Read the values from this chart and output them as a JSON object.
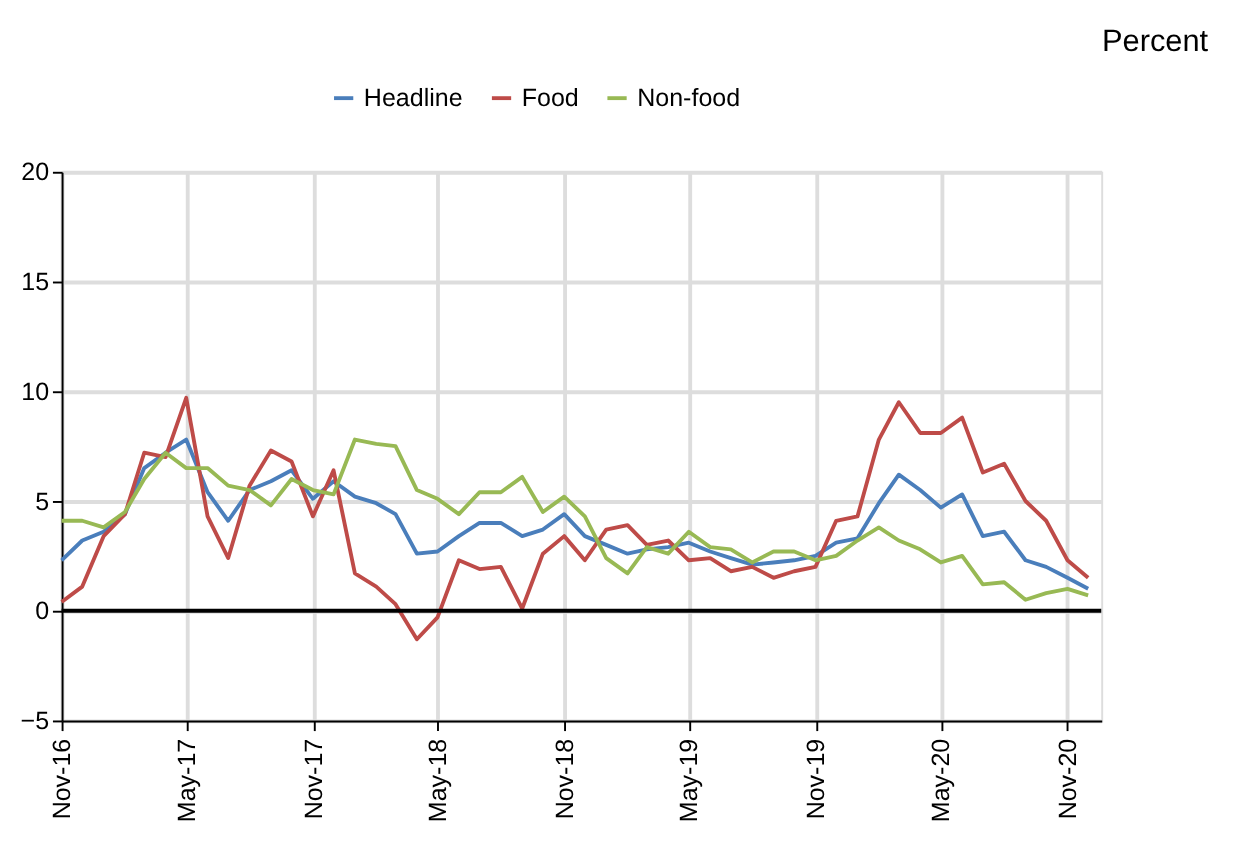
{
  "chart_data": {
    "type": "line",
    "ylabel": "Percent",
    "x": [
      "2016-11",
      "2016-12",
      "2017-01",
      "2017-02",
      "2017-03",
      "2017-04",
      "2017-05",
      "2017-06",
      "2017-07",
      "2017-08",
      "2017-09",
      "2017-10",
      "2017-11",
      "2017-12",
      "2018-01",
      "2018-02",
      "2018-03",
      "2018-04",
      "2018-05",
      "2018-06",
      "2018-07",
      "2018-08",
      "2018-09",
      "2018-10",
      "2018-11",
      "2018-12",
      "2019-01",
      "2019-02",
      "2019-03",
      "2019-04",
      "2019-05",
      "2019-06",
      "2019-07",
      "2019-08",
      "2019-09",
      "2019-10",
      "2019-11",
      "2019-12",
      "2020-01",
      "2020-02",
      "2020-03",
      "2020-04",
      "2020-05",
      "2020-06",
      "2020-07",
      "2020-08",
      "2020-09",
      "2020-10",
      "2020-11",
      "2020-12"
    ],
    "series": [
      {
        "name": "Headline",
        "color": "#4a7ebb",
        "values": [
          2.3,
          3.2,
          3.6,
          4.4,
          6.5,
          7.2,
          7.8,
          5.4,
          4.1,
          5.5,
          5.9,
          6.4,
          5.1,
          5.9,
          5.2,
          4.9,
          4.4,
          2.6,
          2.7,
          3.4,
          4.0,
          4.0,
          3.4,
          3.7,
          4.4,
          3.4,
          3.0,
          2.6,
          2.8,
          2.9,
          3.1,
          2.7,
          2.4,
          2.1,
          2.2,
          2.3,
          2.5,
          3.1,
          3.3,
          4.9,
          6.2,
          5.5,
          4.7,
          5.3,
          3.4,
          3.6,
          2.3,
          2.0,
          1.5,
          1.0
        ]
      },
      {
        "name": "Food",
        "color": "#be4b48",
        "values": [
          0.4,
          1.1,
          3.4,
          4.4,
          7.2,
          7.0,
          9.7,
          4.3,
          2.4,
          5.7,
          7.3,
          6.8,
          4.3,
          6.4,
          1.7,
          1.1,
          0.3,
          -1.3,
          -0.3,
          2.3,
          1.9,
          2.0,
          0.1,
          2.6,
          3.4,
          2.3,
          3.7,
          3.9,
          3.0,
          3.2,
          2.3,
          2.4,
          1.8,
          2.0,
          1.5,
          1.8,
          2.0,
          4.1,
          4.3,
          7.8,
          9.5,
          8.1,
          8.1,
          8.8,
          6.3,
          6.7,
          5.0,
          4.1,
          2.3,
          1.5
        ]
      },
      {
        "name": "Non-food",
        "color": "#98b954",
        "values": [
          4.1,
          4.1,
          3.8,
          4.5,
          6.0,
          7.2,
          6.5,
          6.5,
          5.7,
          5.5,
          4.8,
          6.0,
          5.5,
          5.3,
          7.8,
          7.6,
          7.5,
          5.5,
          5.1,
          4.4,
          5.4,
          5.4,
          6.1,
          4.5,
          5.2,
          4.3,
          2.4,
          1.7,
          2.9,
          2.6,
          3.6,
          2.9,
          2.8,
          2.2,
          2.7,
          2.7,
          2.3,
          2.5,
          3.2,
          3.8,
          3.2,
          2.8,
          2.2,
          2.5,
          1.2,
          1.3,
          0.5,
          0.8,
          1.0,
          0.7
        ]
      }
    ],
    "xlim": [
      "2016-11",
      "2020-12-20"
    ],
    "xticks": [
      {
        "value": "2016-11",
        "label": "Nov-16"
      },
      {
        "value": "2017-05",
        "label": "May-17"
      },
      {
        "value": "2017-11",
        "label": "Nov-17"
      },
      {
        "value": "2018-05",
        "label": "May-18"
      },
      {
        "value": "2018-11",
        "label": "Nov-18"
      },
      {
        "value": "2019-05",
        "label": "May-19"
      },
      {
        "value": "2019-11",
        "label": "Nov-19"
      },
      {
        "value": "2020-05",
        "label": "May-20"
      },
      {
        "value": "2020-11",
        "label": "Nov-20"
      }
    ],
    "ylim": [
      -5,
      20
    ],
    "yticks": [
      -5,
      0,
      5,
      10,
      15,
      20
    ],
    "grid": true,
    "legend": "top",
    "line_style": "solid",
    "marker": "none"
  }
}
